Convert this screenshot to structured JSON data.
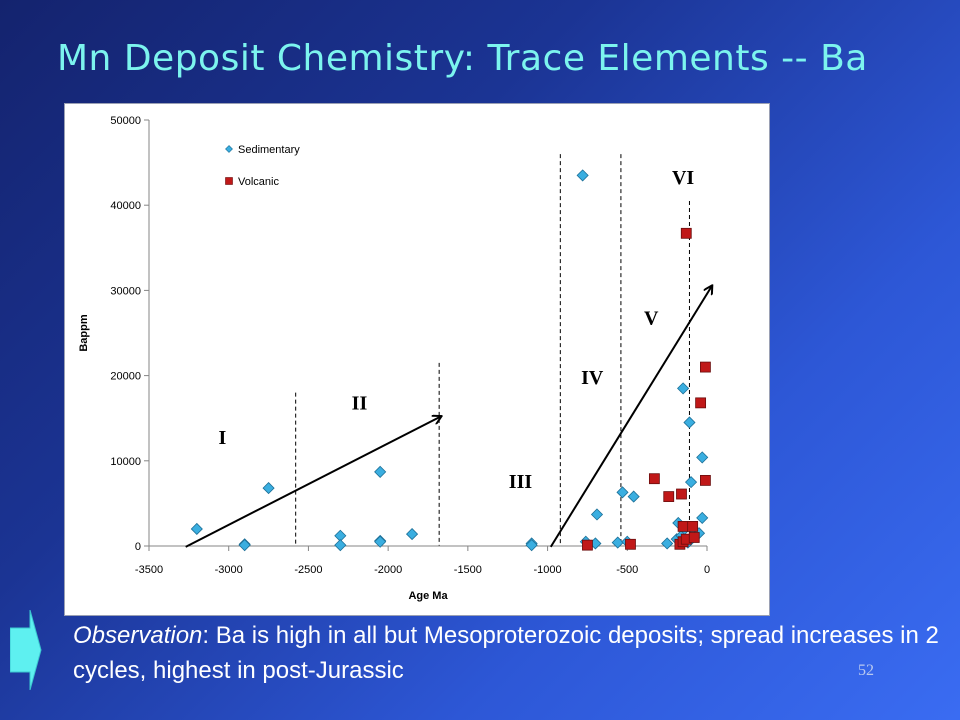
{
  "slide": {
    "title": "Mn Deposit Chemistry: Trace Elements -- Ba",
    "observation_label": "Observation",
    "observation_text": ": Ba is high in all but Mesoproterozoic deposits; spread increases in 2 cycles, highest in post-Jurassic",
    "page_number": "52",
    "title_color": "#7cf4ee",
    "background_color": "#1b3494"
  },
  "chart_data": {
    "type": "scatter",
    "title": "",
    "xlabel": "Age Ma",
    "ylabel": "Bappm",
    "xlim": [
      -3500,
      0
    ],
    "ylim": [
      0,
      50000
    ],
    "xticks": [
      -3500,
      -3000,
      -2500,
      -2000,
      -1500,
      -1000,
      -500,
      0
    ],
    "yticks": [
      0,
      10000,
      20000,
      30000,
      40000,
      50000
    ],
    "grid": false,
    "legend_position": "top-left",
    "series": [
      {
        "name": "Sedimentary",
        "marker": "diamond",
        "color": "#3aaee0",
        "points": [
          [
            -3200,
            2000
          ],
          [
            -2900,
            200
          ],
          [
            -2900,
            100
          ],
          [
            -2750,
            6800
          ],
          [
            -2300,
            1200
          ],
          [
            -2300,
            100
          ],
          [
            -2050,
            8700
          ],
          [
            -2050,
            600
          ],
          [
            -2050,
            500
          ],
          [
            -1850,
            1400
          ],
          [
            -1100,
            300
          ],
          [
            -1100,
            100
          ],
          [
            -780,
            43500
          ],
          [
            -760,
            500
          ],
          [
            -700,
            300
          ],
          [
            -690,
            3700
          ],
          [
            -560,
            400
          ],
          [
            -530,
            6300
          ],
          [
            -500,
            500
          ],
          [
            -460,
            5800
          ],
          [
            -250,
            300
          ],
          [
            -190,
            800
          ],
          [
            -180,
            2700
          ],
          [
            -160,
            1200
          ],
          [
            -150,
            18500
          ],
          [
            -140,
            2000
          ],
          [
            -120,
            400
          ],
          [
            -110,
            14500
          ],
          [
            -100,
            7500
          ],
          [
            -90,
            2000
          ],
          [
            -50,
            1500
          ],
          [
            -30,
            10400
          ],
          [
            -30,
            3300
          ]
        ]
      },
      {
        "name": "Volcanic",
        "marker": "square",
        "color": "#c01818",
        "points": [
          [
            -750,
            100
          ],
          [
            -480,
            200
          ],
          [
            -330,
            7900
          ],
          [
            -240,
            5800
          ],
          [
            -170,
            200
          ],
          [
            -160,
            6100
          ],
          [
            -150,
            2300
          ],
          [
            -150,
            500
          ],
          [
            -130,
            36700
          ],
          [
            -130,
            800
          ],
          [
            -90,
            2300
          ],
          [
            -80,
            1000
          ],
          [
            -40,
            16800
          ],
          [
            -10,
            21000
          ],
          [
            -10,
            7700
          ]
        ]
      }
    ],
    "divider_lines_x": [
      -2580,
      -1680,
      -920,
      -540,
      -110
    ],
    "cycle_arrows": [
      {
        "from": [
          -3270,
          -100
        ],
        "to": [
          -1670,
          15200
        ]
      },
      {
        "from": [
          -980,
          -100
        ],
        "to": [
          30,
          30500
        ]
      }
    ],
    "annotations": [
      {
        "text": "I",
        "x": -3040,
        "y": 12000
      },
      {
        "text": "II",
        "x": -2180,
        "y": 16000
      },
      {
        "text": "III",
        "x": -1170,
        "y": 6800
      },
      {
        "text": "IV",
        "x": -720,
        "y": 19000
      },
      {
        "text": "V",
        "x": -350,
        "y": 26000
      },
      {
        "text": "VI",
        "x": -150,
        "y": 42500
      }
    ]
  }
}
